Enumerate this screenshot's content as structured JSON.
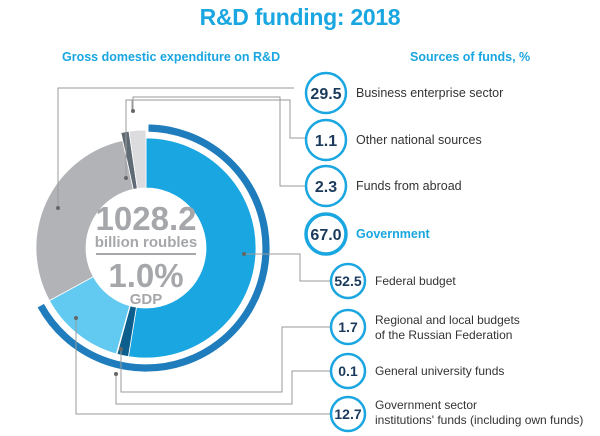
{
  "title": "R&D funding: 2018",
  "left_header": "Gross domestic expenditure on R&D",
  "right_header": "Sources of funds, %",
  "center": {
    "total": "1028.2",
    "unit": "billion roubles",
    "gdp_share": "1.0%",
    "gdp_label": "GDP"
  },
  "colors": {
    "accent": "#1aa6e0",
    "business": "#b2b3b6",
    "other": "#5e6b74",
    "abroad": "#dcdcde",
    "federal": "#1aa6e0",
    "regional": "#0c5f8c",
    "university": "#0a4d73",
    "gov_institutions": "#62c9f0",
    "outer_ring": "#1f7dbd"
  },
  "chart_data": {
    "type": "pie",
    "title": "R&D funding: 2018",
    "total": 1028.2,
    "total_unit": "billion roubles",
    "gdp_share_percent": 1.0,
    "sources": [
      {
        "value": "29.5",
        "name": "Business enterprise sector",
        "level": "main"
      },
      {
        "value": "1.1",
        "name": "Other national sources",
        "level": "main"
      },
      {
        "value": "2.3",
        "name": "Funds from abroad",
        "level": "main"
      },
      {
        "value": "67.0",
        "name": "Government",
        "level": "main"
      },
      {
        "value": "52.5",
        "name": "Federal budget",
        "level": "sub"
      },
      {
        "value": "1.7",
        "name": "Regional and local budgets of the Russian Federation",
        "level": "sub"
      },
      {
        "value": "0.1",
        "name": "General university funds",
        "level": "sub"
      },
      {
        "value": "12.7",
        "name": "Government sector institutions' funds (including own funds)",
        "level": "sub"
      }
    ]
  }
}
